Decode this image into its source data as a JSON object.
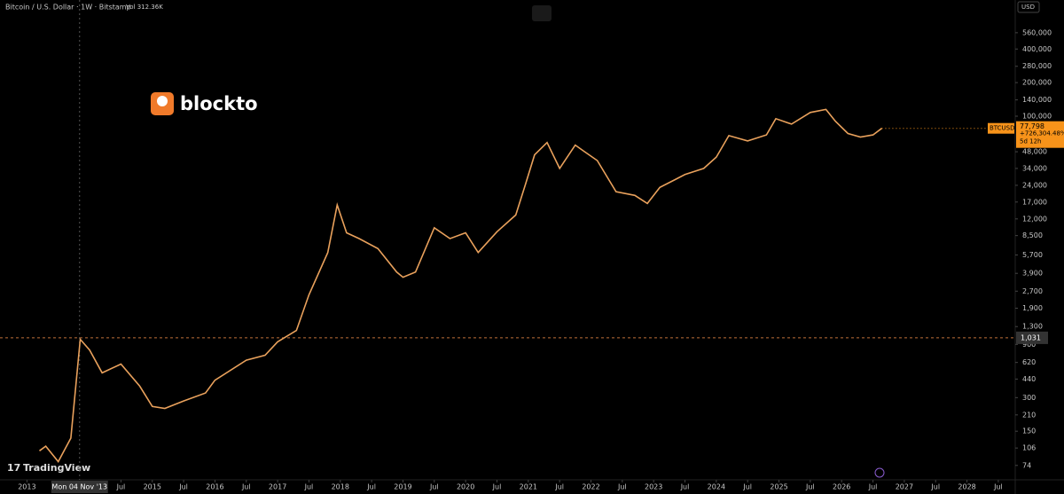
{
  "chart_data": {
    "type": "line",
    "title": "Bitcoin / U.S. Dollar · 1W · Bitstamp",
    "volume_label": "Vol 312.36K",
    "currency": "USD",
    "symbol": "BTCUSD",
    "brand": "blockto",
    "watermark": "TradingView",
    "log_scale": true,
    "color": "#e9a15c",
    "x": [
      2013.2,
      2013.3,
      2013.5,
      2013.7,
      2013.85,
      2014.0,
      2014.2,
      2014.5,
      2014.8,
      2015.0,
      2015.2,
      2015.5,
      2015.85,
      2016.0,
      2016.5,
      2016.8,
      2017.0,
      2017.3,
      2017.5,
      2017.8,
      2017.95,
      2018.1,
      2018.3,
      2018.6,
      2018.9,
      2019.0,
      2019.2,
      2019.5,
      2019.75,
      2020.0,
      2020.2,
      2020.5,
      2020.8,
      2020.95,
      2021.1,
      2021.3,
      2021.5,
      2021.75,
      2021.9,
      2022.1,
      2022.4,
      2022.7,
      2022.9,
      2023.1,
      2023.5,
      2023.8,
      2024.0,
      2024.2,
      2024.5,
      2024.8,
      2024.95,
      2025.2,
      2025.5,
      2025.75,
      2025.9,
      2026.1,
      2026.3,
      2026.5,
      2026.64
    ],
    "values": [
      100,
      110,
      80,
      130,
      1000,
      800,
      500,
      600,
      380,
      250,
      240,
      280,
      330,
      430,
      650,
      720,
      950,
      1200,
      2500,
      6000,
      16000,
      9000,
      8000,
      6500,
      4000,
      3600,
      4000,
      10000,
      8000,
      9000,
      6000,
      9200,
      13000,
      24000,
      45000,
      58000,
      34000,
      55000,
      48000,
      40000,
      21000,
      19500,
      16500,
      23000,
      30000,
      34000,
      43000,
      67000,
      60000,
      68000,
      95000,
      85000,
      108000,
      115000,
      90000,
      70000,
      65000,
      68000,
      77798
    ],
    "last_price": {
      "value": 77798,
      "label": "77,798"
    },
    "change_label": "+726,304.48%",
    "countdown": "5d 12h",
    "crosshair_y": {
      "value": 1031,
      "label": "1,031"
    },
    "crosshair_x": {
      "value": 2013.84,
      "label": "Mon 04 Nov '13"
    },
    "xlim": [
      2012.57,
      2028.77
    ],
    "ylim": [
      55,
      1100000
    ],
    "xticks": [
      2013,
      {
        "value": 2014.5,
        "label": "Jul"
      },
      2015,
      {
        "value": 2015.5,
        "label": "Jul"
      },
      2016,
      {
        "value": 2016.5,
        "label": "Jul"
      },
      2017,
      {
        "value": 2017.5,
        "label": "Jul"
      },
      2018,
      {
        "value": 2018.5,
        "label": "Jul"
      },
      2019,
      {
        "value": 2019.5,
        "label": "Jul"
      },
      2020,
      {
        "value": 2020.5,
        "label": "Jul"
      },
      2021,
      {
        "value": 2021.5,
        "label": "Jul"
      },
      2022,
      {
        "value": 2022.5,
        "label": "Jul"
      },
      2023,
      {
        "value": 2023.5,
        "label": "Jul"
      },
      2024,
      {
        "value": 2024.5,
        "label": "Jul"
      },
      2025,
      {
        "value": 2025.5,
        "label": "Jul"
      },
      2026,
      {
        "value": 2026.5,
        "label": "Jul"
      },
      2027,
      {
        "value": 2027.5,
        "label": "Jul"
      },
      2028,
      {
        "value": 2028.5,
        "label": "Jul"
      }
    ],
    "yticks": [
      74,
      106,
      150,
      210,
      300,
      440,
      620,
      900,
      {
        "value": 1300,
        "label": "1,300"
      },
      {
        "value": 1900,
        "label": "1,900"
      },
      {
        "value": 2700,
        "label": "2,700"
      },
      {
        "value": 3900,
        "label": "3,900"
      },
      {
        "value": 5700,
        "label": "5,700"
      },
      {
        "value": 8500,
        "label": "8,500"
      },
      {
        "value": 12000,
        "label": "12,000"
      },
      {
        "value": 17000,
        "label": "17,000"
      },
      {
        "value": 24000,
        "label": "24,000"
      },
      {
        "value": 34000,
        "label": "34,000"
      },
      {
        "value": 48000,
        "label": "48,000"
      },
      {
        "value": 100000,
        "label": "100,000"
      },
      {
        "value": 140000,
        "label": "140,000"
      },
      {
        "value": 200000,
        "label": "200,000"
      },
      {
        "value": 280000,
        "label": "280,000"
      },
      {
        "value": 400000,
        "label": "400,000"
      },
      {
        "value": 560000,
        "label": "560,000"
      }
    ]
  }
}
